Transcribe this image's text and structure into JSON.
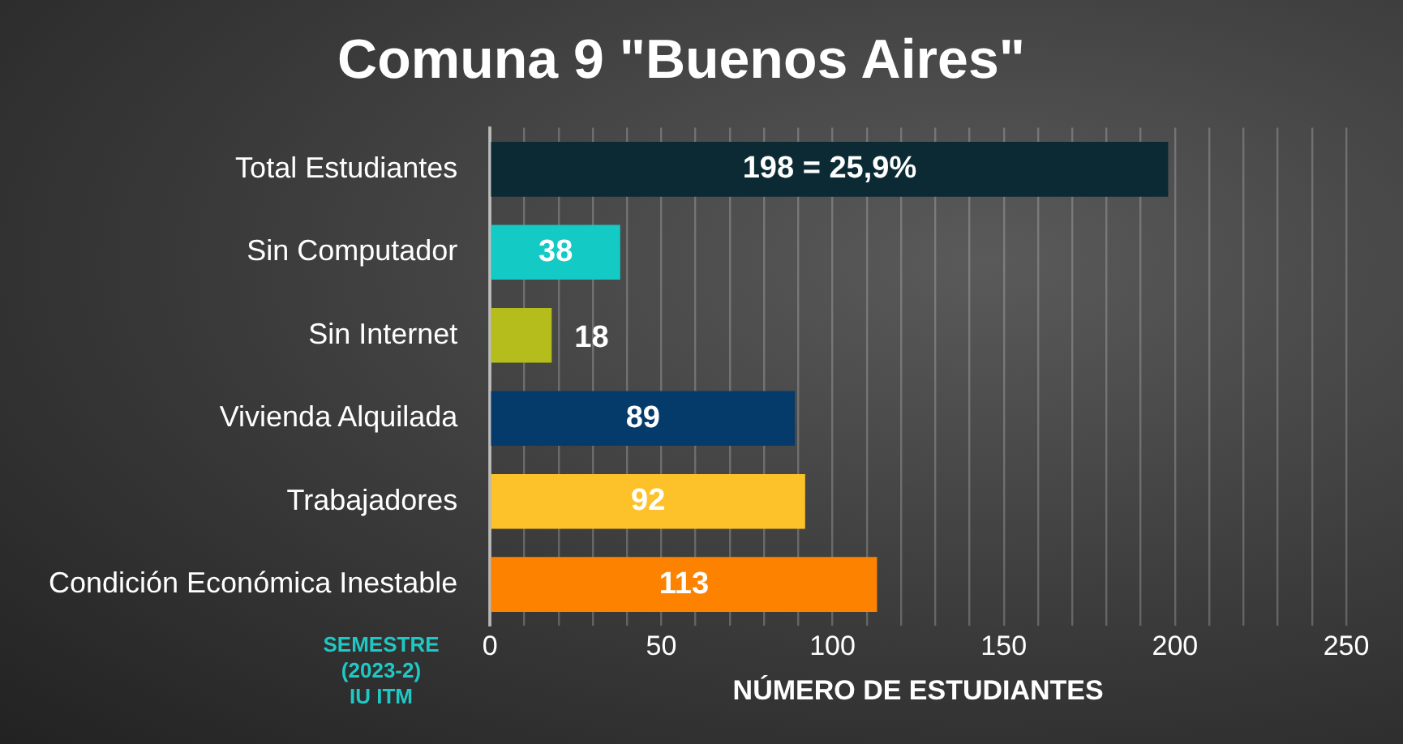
{
  "chart_data": {
    "type": "bar",
    "orientation": "horizontal",
    "title": "Comuna 9 \"Buenos Aires\"",
    "xlabel": "NÚMERO DE ESTUDIANTES",
    "categories": [
      "Total Estudiantes",
      "Sin Computador",
      "Sin Internet",
      "Vivienda Alquilada",
      "Trabajadores",
      "Condición Económica Inestable"
    ],
    "values": [
      198,
      38,
      18,
      89,
      92,
      113
    ],
    "colors": [
      "#0b2a33",
      "#13cbc4",
      "#b5bd1c",
      "#053b6b",
      "#fdc22a",
      "#fd8200"
    ],
    "value_labels": [
      "198 = 25,9%",
      "38",
      "18",
      "89",
      "92",
      "113"
    ],
    "xlim": [
      0,
      250
    ],
    "xticks": [
      0,
      {
        "value": 10,
        "label": null
      },
      {
        "value": 20,
        "label": null
      },
      {
        "value": 30,
        "label": null
      },
      {
        "value": 40,
        "label": null
      },
      50,
      {
        "value": 60,
        "label": null
      },
      {
        "value": 70,
        "label": null
      },
      {
        "value": 80,
        "label": null
      },
      {
        "value": 90,
        "label": null
      },
      100,
      {
        "value": 110,
        "label": null
      },
      {
        "value": 120,
        "label": null
      },
      {
        "value": 130,
        "label": null
      },
      {
        "value": 140,
        "label": null
      },
      150,
      {
        "value": 160,
        "label": null
      },
      {
        "value": 170,
        "label": null
      },
      {
        "value": 180,
        "label": null
      },
      {
        "value": 190,
        "label": null
      },
      200,
      {
        "value": 210,
        "label": null
      },
      {
        "value": 220,
        "label": null
      },
      {
        "value": 230,
        "label": null
      },
      {
        "value": 240,
        "label": null
      },
      250
    ],
    "grid": "x",
    "legend": false,
    "annotations": [
      "SEMESTRE\n(2023-2)\nIU ITM"
    ]
  }
}
